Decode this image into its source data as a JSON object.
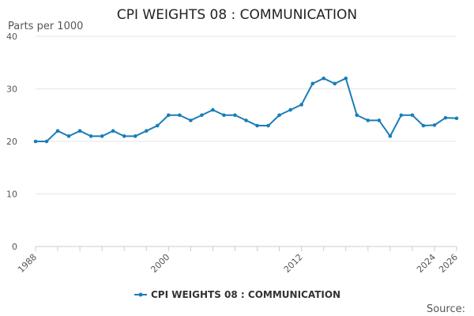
{
  "chart_data": {
    "type": "line",
    "title": "CPI WEIGHTS 08 : COMMUNICATION",
    "ylabel": "Parts per 1000",
    "xlabel": "",
    "source_label": "Source:",
    "ylim": [
      0,
      40
    ],
    "yticks": [
      0,
      10,
      20,
      30,
      40
    ],
    "xlim": [
      1988,
      2026
    ],
    "xtick_labels": [
      1988,
      2000,
      2012,
      2024,
      2026
    ],
    "legend_position": "bottom-center",
    "grid": true,
    "colors": {
      "series": "#1a7db8",
      "grid": "#e6e6e6",
      "axis": "#cccccc"
    },
    "series": [
      {
        "name": "CPI WEIGHTS 08 : COMMUNICATION",
        "x": [
          1988,
          1989,
          1990,
          1991,
          1992,
          1993,
          1994,
          1995,
          1996,
          1997,
          1998,
          1999,
          2000,
          2001,
          2002,
          2003,
          2004,
          2005,
          2006,
          2007,
          2008,
          2009,
          2010,
          2011,
          2012,
          2013,
          2014,
          2015,
          2016,
          2017,
          2018,
          2019,
          2020,
          2021,
          2022,
          2023,
          2024,
          2025,
          2026
        ],
        "values": [
          20,
          20,
          22,
          21,
          22,
          21,
          21,
          22,
          21,
          21,
          22,
          23,
          25,
          25,
          24,
          25,
          26,
          25,
          25,
          24,
          23,
          23,
          25,
          26,
          27,
          31,
          32,
          31,
          32,
          25,
          24,
          24,
          21,
          25,
          25,
          23,
          23.1,
          24.5,
          24.4
        ]
      }
    ]
  }
}
